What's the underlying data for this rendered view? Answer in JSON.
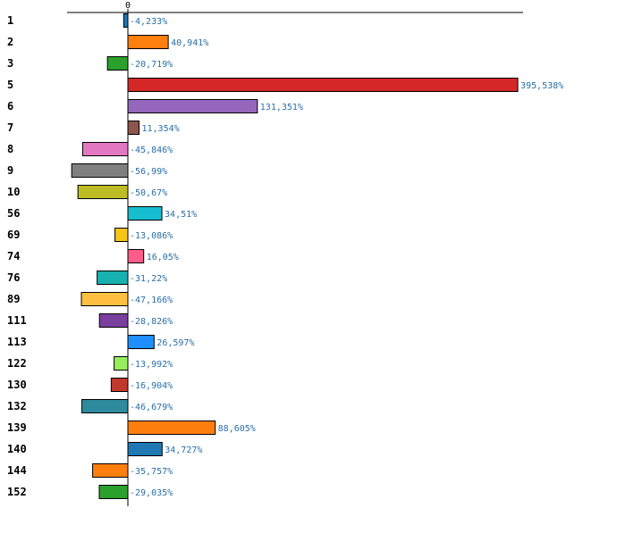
{
  "chart_data": {
    "type": "bar",
    "orientation": "horizontal",
    "title": "",
    "xlabel": "",
    "ylabel": "",
    "xlim": [
      -100,
      640
    ],
    "x_ticks": [
      0
    ],
    "x_tick_labels": [
      "0"
    ],
    "grid": false,
    "legend": "none",
    "categories": [
      "1",
      "2",
      "3",
      "5",
      "6",
      "7",
      "8",
      "9",
      "10",
      "56",
      "69",
      "74",
      "76",
      "89",
      "111",
      "113",
      "122",
      "130",
      "132",
      "139",
      "140",
      "144",
      "152"
    ],
    "values": [
      -4.233,
      40.941,
      -20.719,
      395.538,
      131.351,
      11.354,
      -45.846,
      -56.99,
      -50.67,
      34.51,
      -13.086,
      16.05,
      -31.22,
      -47.166,
      -28.826,
      26.597,
      -13.992,
      -16.904,
      -46.679,
      88.605,
      34.727,
      -35.757,
      -29.035
    ],
    "value_labels": [
      "-4,233%",
      "40,941%",
      "-20,719%",
      "395,538%",
      "131,351%",
      "11,354%",
      "-45,846%",
      "-56,99%",
      "-50,67%",
      "34,51%",
      "-13,086%",
      "16,05%",
      "-31,22%",
      "-47,166%",
      "-28,826%",
      "26,597%",
      "-13,992%",
      "-16,904%",
      "-46,679%",
      "88,605%",
      "34,727%",
      "-35,757%",
      "-29,035%"
    ],
    "colors": [
      "#1f77b4",
      "#ff7f0e",
      "#2ca02c",
      "#d62728",
      "#9467bd",
      "#8c564b",
      "#e377c2",
      "#7f7f7f",
      "#bcbd22",
      "#17becf",
      "#f5c518",
      "#ff5c8a",
      "#17b2b0",
      "#ffbf40",
      "#7b3fa0",
      "#1f8fff",
      "#98ee5a",
      "#c0392b",
      "#2e8b9e",
      "#ff7f0e",
      "#1f77b4",
      "#ff7f0e",
      "#2ca02c"
    ]
  }
}
